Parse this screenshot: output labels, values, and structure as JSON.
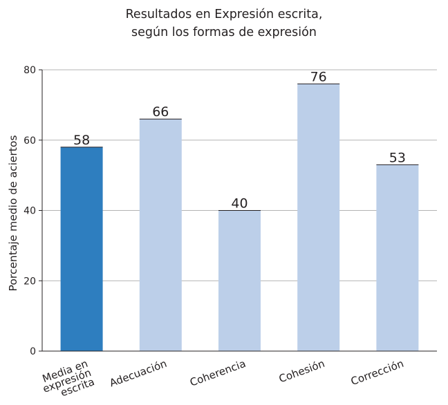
{
  "chart_data": {
    "type": "bar",
    "title_lines": [
      "Resultados en Expresión escrita,",
      "según los formas de expresión"
    ],
    "ylabel": "Porcentaje medio de aciertos",
    "xlabel": "",
    "ylim": [
      0,
      80
    ],
    "yticks": [
      0,
      20,
      40,
      60,
      80
    ],
    "grid": true,
    "categories": [
      [
        "Media en",
        "expresión",
        "escrita"
      ],
      [
        "Adecuación"
      ],
      [
        "Coherencia"
      ],
      [
        "Cohesión"
      ],
      [
        "Corrección"
      ]
    ],
    "values": [
      58,
      66,
      40,
      76,
      53
    ],
    "colors": [
      "#2e7ebf",
      "#bccfe9",
      "#bccfe9",
      "#bccfe9",
      "#bccfe9"
    ],
    "value_labels": [
      "58",
      "66",
      "40",
      "76",
      "53"
    ],
    "label_rotation_deg": -20
  }
}
